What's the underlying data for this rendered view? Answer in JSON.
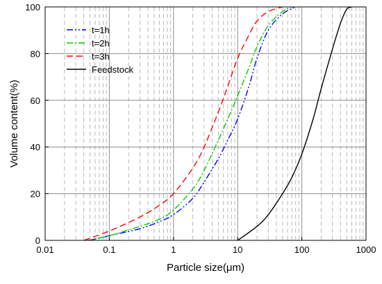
{
  "chart_data": {
    "type": "line",
    "xlabel": "Particle size(μm)",
    "ylabel": "Volume content(%)",
    "x_scale": "log",
    "xlim": [
      0.01,
      1000
    ],
    "ylim": [
      0,
      100
    ],
    "x_ticks": [
      0.01,
      0.1,
      1,
      10,
      100,
      1000
    ],
    "x_tick_labels": [
      "0.01",
      "0.1",
      "1",
      "10",
      "100",
      "1000"
    ],
    "y_ticks": [
      0,
      20,
      40,
      60,
      80,
      100
    ],
    "y_tick_labels": [
      "0",
      "20",
      "40",
      "60",
      "80",
      "100"
    ],
    "grid": "major solid, minor dashed",
    "legend_position": "top-left",
    "series": [
      {
        "name": "t=1h",
        "color": "#0000ff",
        "dash": "dash-dot-dot",
        "points": [
          [
            0.05,
            0
          ],
          [
            0.1,
            2
          ],
          [
            0.3,
            5
          ],
          [
            0.6,
            8
          ],
          [
            1,
            11
          ],
          [
            2,
            18
          ],
          [
            3,
            25
          ],
          [
            5,
            35
          ],
          [
            7,
            43
          ],
          [
            10,
            52
          ],
          [
            15,
            66
          ],
          [
            20,
            78
          ],
          [
            30,
            90
          ],
          [
            50,
            97
          ],
          [
            80,
            100
          ]
        ]
      },
      {
        "name": "t=2h",
        "color": "#00cc00",
        "dash": "dash-dot",
        "points": [
          [
            0.045,
            0
          ],
          [
            0.1,
            2
          ],
          [
            0.3,
            6
          ],
          [
            0.6,
            9
          ],
          [
            1,
            13
          ],
          [
            2,
            22
          ],
          [
            3,
            30
          ],
          [
            5,
            43
          ],
          [
            7,
            52
          ],
          [
            10,
            62
          ],
          [
            15,
            74
          ],
          [
            20,
            83
          ],
          [
            30,
            92
          ],
          [
            50,
            98
          ],
          [
            70,
            100
          ]
        ]
      },
      {
        "name": "t=3h",
        "color": "#ff0000",
        "dash": "dashed",
        "points": [
          [
            0.04,
            0
          ],
          [
            0.1,
            4
          ],
          [
            0.3,
            10
          ],
          [
            0.6,
            15
          ],
          [
            1,
            20
          ],
          [
            2,
            31
          ],
          [
            3,
            40
          ],
          [
            5,
            55
          ],
          [
            7,
            66
          ],
          [
            10,
            78
          ],
          [
            15,
            88
          ],
          [
            20,
            94
          ],
          [
            30,
            98
          ],
          [
            50,
            100
          ]
        ]
      },
      {
        "name": "Feedstock",
        "color": "#000000",
        "dash": "solid",
        "points": [
          [
            10,
            0
          ],
          [
            20,
            6
          ],
          [
            30,
            11
          ],
          [
            50,
            20
          ],
          [
            70,
            27
          ],
          [
            100,
            37
          ],
          [
            150,
            52
          ],
          [
            200,
            65
          ],
          [
            300,
            82
          ],
          [
            400,
            93
          ],
          [
            500,
            99
          ],
          [
            600,
            100
          ]
        ]
      }
    ]
  }
}
